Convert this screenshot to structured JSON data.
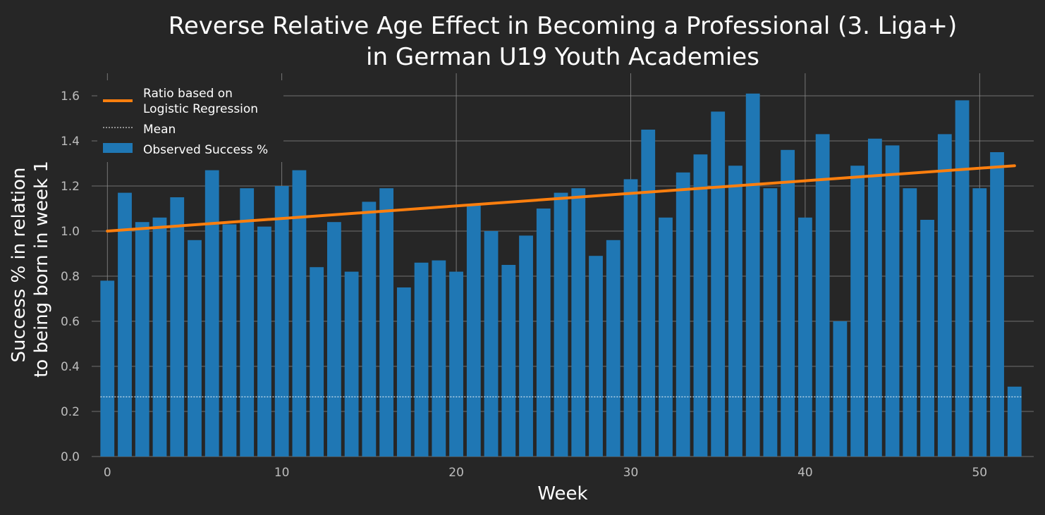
{
  "chart_data": {
    "type": "bar",
    "title_lines": [
      "Reverse Relative Age Effect in Becoming a Professional (3. Liga+)",
      "in German U19 Youth Academies"
    ],
    "xlabel": "Week",
    "ylabel_lines": [
      "Success % in relation",
      "to being born in week 1"
    ],
    "xlim": [
      -0.9,
      53.1
    ],
    "ylim": [
      0,
      1.7
    ],
    "xticks": [
      0,
      10,
      20,
      30,
      40,
      50
    ],
    "xtick_labels": [
      "0",
      "10",
      "20",
      "30",
      "40",
      "50"
    ],
    "yticks": [
      0,
      0.2,
      0.4,
      0.6,
      0.8,
      1.0,
      1.2,
      1.4,
      1.6
    ],
    "ytick_labels": [
      "0.0",
      "0.2",
      "0.4",
      "0.6",
      "0.8",
      "1.0",
      "1.2",
      "1.4",
      "1.6"
    ],
    "grid": true,
    "legend_position": "top-left",
    "weeks": [
      0,
      1,
      2,
      3,
      4,
      5,
      6,
      7,
      8,
      9,
      10,
      11,
      12,
      13,
      14,
      15,
      16,
      17,
      18,
      19,
      20,
      21,
      22,
      23,
      24,
      25,
      26,
      27,
      28,
      29,
      30,
      31,
      32,
      33,
      34,
      35,
      36,
      37,
      38,
      39,
      40,
      41,
      42,
      43,
      44,
      45,
      46,
      47,
      48,
      49,
      50,
      51,
      52
    ],
    "observed_success": [
      0.78,
      1.17,
      1.04,
      1.06,
      1.15,
      0.96,
      1.27,
      1.03,
      1.19,
      1.02,
      1.2,
      1.27,
      0.84,
      1.04,
      0.82,
      1.13,
      1.19,
      0.75,
      0.86,
      0.87,
      0.82,
      1.12,
      1.0,
      0.85,
      0.98,
      1.1,
      1.17,
      1.19,
      0.89,
      0.96,
      1.23,
      1.45,
      1.06,
      1.26,
      1.34,
      1.53,
      1.29,
      1.61,
      1.19,
      1.36,
      1.06,
      1.43,
      0.6,
      1.29,
      1.41,
      1.38,
      1.19,
      1.05,
      1.43,
      1.58,
      1.19,
      1.35,
      0.31
    ],
    "regression_line": {
      "x": [
        0,
        52
      ],
      "y": [
        1.0,
        1.29
      ]
    },
    "mean": 0.265,
    "series": [
      {
        "name": "Ratio based on Logistic Regression",
        "legend_lines": [
          "Ratio based on",
          "Logistic Regression"
        ],
        "color": "#ff7f0e",
        "kind": "line"
      },
      {
        "name": "Mean",
        "color": "#ffffff",
        "kind": "dashed-line"
      },
      {
        "name": "Observed Success %",
        "color": "#1f77b4",
        "kind": "bar"
      }
    ]
  }
}
